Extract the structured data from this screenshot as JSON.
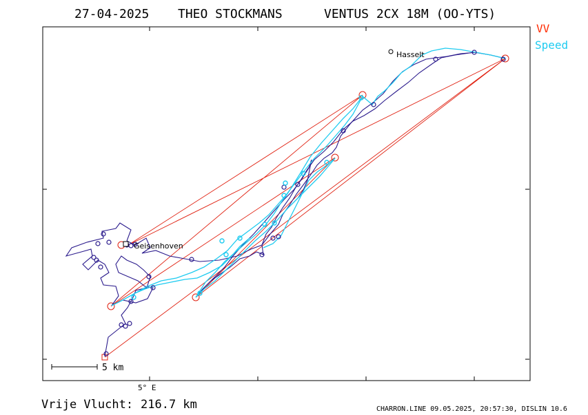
{
  "header": {
    "date": "27-04-2025",
    "pilot": "THEO STOCKMANS",
    "glider": "VENTUS 2CX 18M (OO-YTS)"
  },
  "legend": {
    "items": [
      {
        "label": "VV",
        "color": "#ff2a00"
      },
      {
        "label": "Speed",
        "color": "#1ecbf0"
      }
    ]
  },
  "colors": {
    "track": "#2a1a8c",
    "speed": "#1ecbf0",
    "task": "#e02010",
    "frame": "#000000"
  },
  "map": {
    "places": [
      {
        "name": "Hasselt"
      },
      {
        "name": "Geisenhoven"
      }
    ],
    "longitude_label": "5° E",
    "scale_label": "5 km"
  },
  "footer": {
    "distance_label": "Vrije Vlucht:",
    "distance_value": "216.7 km",
    "credit": "CHARRON.LINE 09.05.2025, 20:57:30, DISLIN 10.6"
  }
}
